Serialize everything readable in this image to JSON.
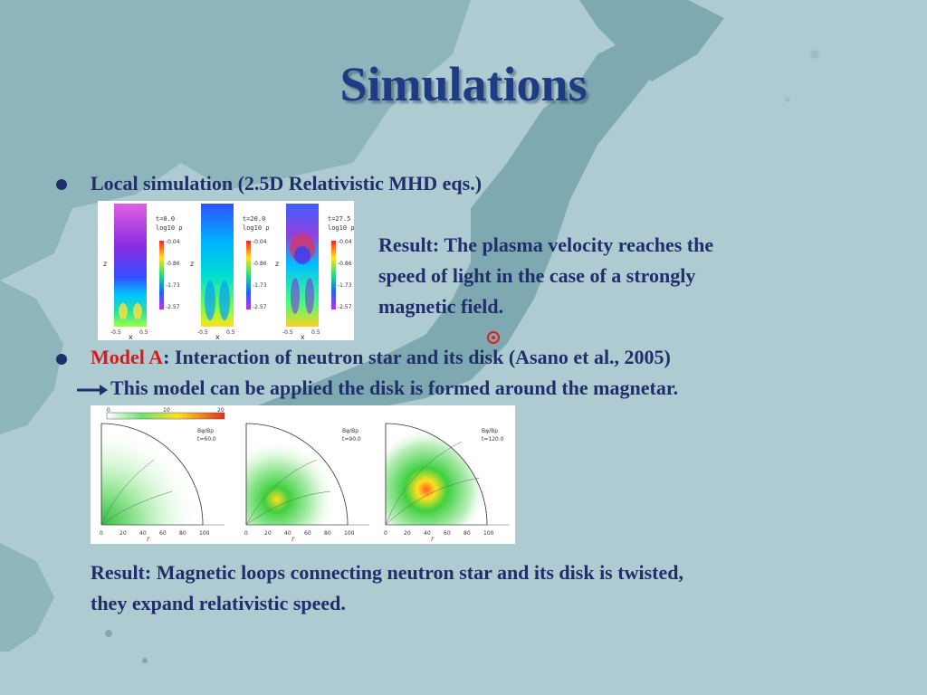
{
  "slide": {
    "title": "Simulations",
    "bullet1": {
      "text": "Local simulation (2.5D Relativistic MHD eqs.)"
    },
    "result1": [
      "Result: The plasma velocity reaches the",
      "speed of light in the case of a strongly",
      "magnetic field."
    ],
    "bullet2": {
      "highlight": "Model A",
      "text": ": Interaction of neutron star and its disk (Asano et al., 2005)"
    },
    "arrow_line": "This model can be applied the disk is formed around the magnetar.",
    "result2": [
      "Result: Magnetic loops connecting neutron star and its disk is twisted,",
      "they expand relativistic speed."
    ]
  },
  "figure1": {
    "panels": [
      {
        "time": "t=0.0",
        "quantity": "log10 ρ"
      },
      {
        "time": "t=20.0",
        "quantity": "log10 ρ"
      },
      {
        "time": "t=27.5",
        "quantity": "log10 ρ"
      }
    ],
    "colorbar_ticks": [
      "-0.04",
      "-0.86",
      "-1.73",
      "-2.57"
    ],
    "x_ticks": [
      "-0.5",
      "0.5"
    ],
    "x_label": "x",
    "z_label": "z"
  },
  "figure2": {
    "colorbar_ticks": [
      "0",
      "10",
      "20"
    ],
    "panels": [
      {
        "quantity": "Bφ/Bp",
        "time": "t=60.0"
      },
      {
        "quantity": "Bφ/Bp",
        "time": "t=90.0"
      },
      {
        "quantity": "Bφ/Bp",
        "time": "t=120.0"
      }
    ],
    "r_ticks": [
      "0",
      "20",
      "40",
      "60",
      "80",
      "100"
    ],
    "r_label": "r"
  },
  "colors": {
    "title": "#1f3b84",
    "text": "#1f2f6a",
    "highlight": "#d21d1d",
    "sea": "#a9c8cf",
    "land": "#7ea9b0"
  }
}
